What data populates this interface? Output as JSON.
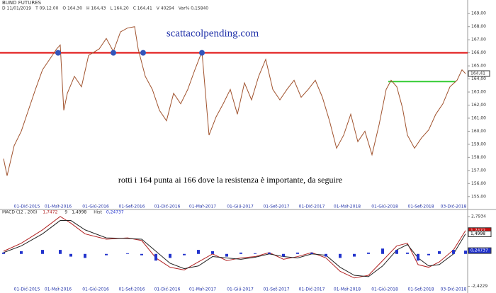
{
  "chart_data": [
    {
      "type": "line",
      "title": "BUND FUTURES",
      "header": [
        "D 11/01/2019",
        "T 09.12.00",
        "O 164,30",
        "H 164,43",
        "L 164,20",
        "C 164,41",
        "V 40294",
        "Var% 0,15840"
      ],
      "watermark": "scattacolpending.com",
      "annotation": "rotti i 164 punta ai 166 dove la resistenza è importante, da seguire",
      "x": [
        5,
        10,
        20,
        30,
        40,
        50,
        60,
        70,
        80,
        85,
        90,
        95,
        105,
        115,
        125,
        140,
        150,
        160,
        170,
        180,
        190,
        195,
        205,
        215,
        225,
        235,
        245,
        255,
        265,
        275,
        285,
        295,
        305,
        315,
        325,
        335,
        345,
        355,
        365,
        375,
        385,
        395,
        405,
        415,
        425,
        435,
        445,
        455,
        465,
        475,
        485,
        495,
        505,
        515,
        525,
        535,
        545,
        552,
        560,
        568,
        575,
        585,
        595,
        605,
        615,
        625,
        635,
        645,
        652,
        657
      ],
      "series": [
        {
          "name": "BUND FUTURES",
          "color": "#a0522d",
          "values": [
            157.9,
            156.6,
            158.9,
            160,
            161.6,
            163.2,
            164.7,
            165.5,
            166.3,
            166.6,
            161.6,
            162.9,
            164.2,
            163.4,
            165.8,
            166.3,
            167.1,
            166.1,
            167.6,
            167.9,
            168,
            166.3,
            164.2,
            163.2,
            161.6,
            160.8,
            162.9,
            162.1,
            163.2,
            164.7,
            166.1,
            159.7,
            161.1,
            162.1,
            163.2,
            161.3,
            163.7,
            162.4,
            164.2,
            165.5,
            163.2,
            162.4,
            163.2,
            163.9,
            162.6,
            163.2,
            163.9,
            162.6,
            160.8,
            158.7,
            159.7,
            161.3,
            159.2,
            160,
            158.2,
            160.5,
            163.2,
            163.9,
            163.4,
            161.8,
            159.7,
            158.7,
            159.5,
            160.1,
            161.3,
            162.1,
            163.4,
            163.9,
            164.7,
            164.41
          ]
        }
      ],
      "xlim": [
        0,
        660
      ],
      "xticks": [
        {
          "value": 38,
          "label": "01-Dic-2015"
        },
        {
          "value": 82,
          "label": "01-Mar-2016"
        },
        {
          "value": 135,
          "label": "01-Giu-2016"
        },
        {
          "value": 186,
          "label": "01-Set-2016"
        },
        {
          "value": 236,
          "label": "01-Dic-2016"
        },
        {
          "value": 286,
          "label": "01-Mar-2017"
        },
        {
          "value": 339,
          "label": "01-Giu-2017"
        },
        {
          "value": 390,
          "label": "01-Set-2017"
        },
        {
          "value": 440,
          "label": "01-Dic-2017"
        },
        {
          "value": 490,
          "label": "01-Mar-2018"
        },
        {
          "value": 543,
          "label": "01-Giu-2018"
        },
        {
          "value": 594,
          "label": "01-Set-2018"
        },
        {
          "value": 640,
          "label": "03-Dic-2018"
        }
      ],
      "ylim": [
        154.5,
        169.5
      ],
      "yticks": [
        {
          "value": 155,
          "label": "155,00"
        },
        {
          "value": 156,
          "label": "156,00"
        },
        {
          "value": 157,
          "label": "157,00"
        },
        {
          "value": 158,
          "label": "158,00"
        },
        {
          "value": 159,
          "label": "159,00"
        },
        {
          "value": 160,
          "label": "160,00"
        },
        {
          "value": 161,
          "label": "161,00"
        },
        {
          "value": 162,
          "label": "162,00"
        },
        {
          "value": 163,
          "label": "163,00"
        },
        {
          "value": 164,
          "label": "164,00"
        },
        {
          "value": 165,
          "label": "165,00"
        },
        {
          "value": 166,
          "label": "166,00"
        },
        {
          "value": 167,
          "label": "167,00"
        },
        {
          "value": 168,
          "label": "168,00"
        },
        {
          "value": 169,
          "label": "169,00"
        }
      ],
      "last_value": {
        "value": 164.41,
        "label": "164,41"
      },
      "hlines": [
        {
          "y": 166,
          "x": [
            0,
            660
          ],
          "color": "#e01010"
        },
        {
          "y": 163.8,
          "x": [
            548,
            643
          ],
          "color": "#33cc33"
        }
      ],
      "markers": {
        "x": [
          82,
          160,
          202,
          285
        ],
        "y": 166,
        "color": "#3355bb"
      }
    },
    {
      "type": "line",
      "title": "MACD (12 , 200)",
      "x": [
        5,
        30,
        60,
        85,
        100,
        120,
        150,
        180,
        200,
        220,
        240,
        260,
        280,
        300,
        320,
        340,
        360,
        380,
        400,
        420,
        440,
        460,
        480,
        500,
        520,
        540,
        560,
        575,
        590,
        605,
        620,
        640,
        657
      ],
      "series": [
        {
          "name": "MACD (12 , 200)",
          "color": "#b22222",
          "last": {
            "value": 1.7472,
            "label": "1,7472"
          },
          "values": [
            0.2,
            0.8,
            1.8,
            2.8,
            2.3,
            1.5,
            1.1,
            1.2,
            1.0,
            -0.3,
            -1.0,
            -1.2,
            -0.6,
            0.0,
            -0.5,
            -0.3,
            -0.2,
            0.1,
            -0.4,
            -0.2,
            0.1,
            -0.3,
            -1.3,
            -1.8,
            -1.6,
            -0.5,
            0.6,
            0.8,
            -0.8,
            -1.0,
            -0.6,
            0.3,
            1.7472
          ]
        },
        {
          "name": "9",
          "color": "#222222",
          "last": {
            "value": 1.4998,
            "label": "1,4998"
          },
          "values": [
            0.1,
            0.6,
            1.5,
            2.5,
            2.5,
            1.8,
            1.2,
            1.15,
            1.1,
            0.2,
            -0.7,
            -1.1,
            -0.9,
            -0.2,
            -0.3,
            -0.4,
            -0.25,
            0.0,
            -0.2,
            -0.3,
            0.0,
            -0.1,
            -1.0,
            -1.6,
            -1.7,
            -0.9,
            0.3,
            0.7,
            -0.3,
            -0.9,
            -0.8,
            0.0,
            1.4998
          ]
        },
        {
          "name": "Hist",
          "color": "#2233cc",
          "type": "bar",
          "last": {
            "value": 0.24737,
            "label": "0,24737"
          },
          "values": [
            0.1,
            0.2,
            0.3,
            0.3,
            -0.2,
            -0.3,
            -0.1,
            0.05,
            -0.1,
            -0.5,
            -0.3,
            -0.1,
            0.3,
            0.2,
            -0.2,
            0.1,
            0.05,
            0.1,
            -0.2,
            0.1,
            0.1,
            -0.2,
            -0.3,
            -0.2,
            0.1,
            0.4,
            0.3,
            0.1,
            -0.5,
            -0.1,
            0.2,
            0.3,
            0.24737
          ]
        }
      ],
      "xlim": [
        0,
        660
      ],
      "xticks": [
        {
          "value": 38,
          "label": "01-Dic-2015"
        },
        {
          "value": 82,
          "label": "01-Mar-2016"
        },
        {
          "value": 135,
          "label": "01-Giu-2016"
        },
        {
          "value": 186,
          "label": "01-Set-2016"
        },
        {
          "value": 236,
          "label": "01-Dic-2016"
        },
        {
          "value": 286,
          "label": "01-Mar-2017"
        },
        {
          "value": 339,
          "label": "01-Giu-2017"
        },
        {
          "value": 390,
          "label": "01-Set-2017"
        },
        {
          "value": 440,
          "label": "01-Dic-2017"
        },
        {
          "value": 490,
          "label": "01-Mar-2018"
        },
        {
          "value": 543,
          "label": "01-Giu-2018"
        },
        {
          "value": 594,
          "label": "01-Set-2018"
        },
        {
          "value": 640,
          "label": "03-Dic-2018"
        }
      ],
      "ylim": [
        -2.5,
        2.9
      ],
      "yticks": [
        {
          "value": 2.7934,
          "label": "2,7934"
        },
        {
          "value": -2.4229,
          "label": "-2,4229"
        }
      ]
    }
  ]
}
